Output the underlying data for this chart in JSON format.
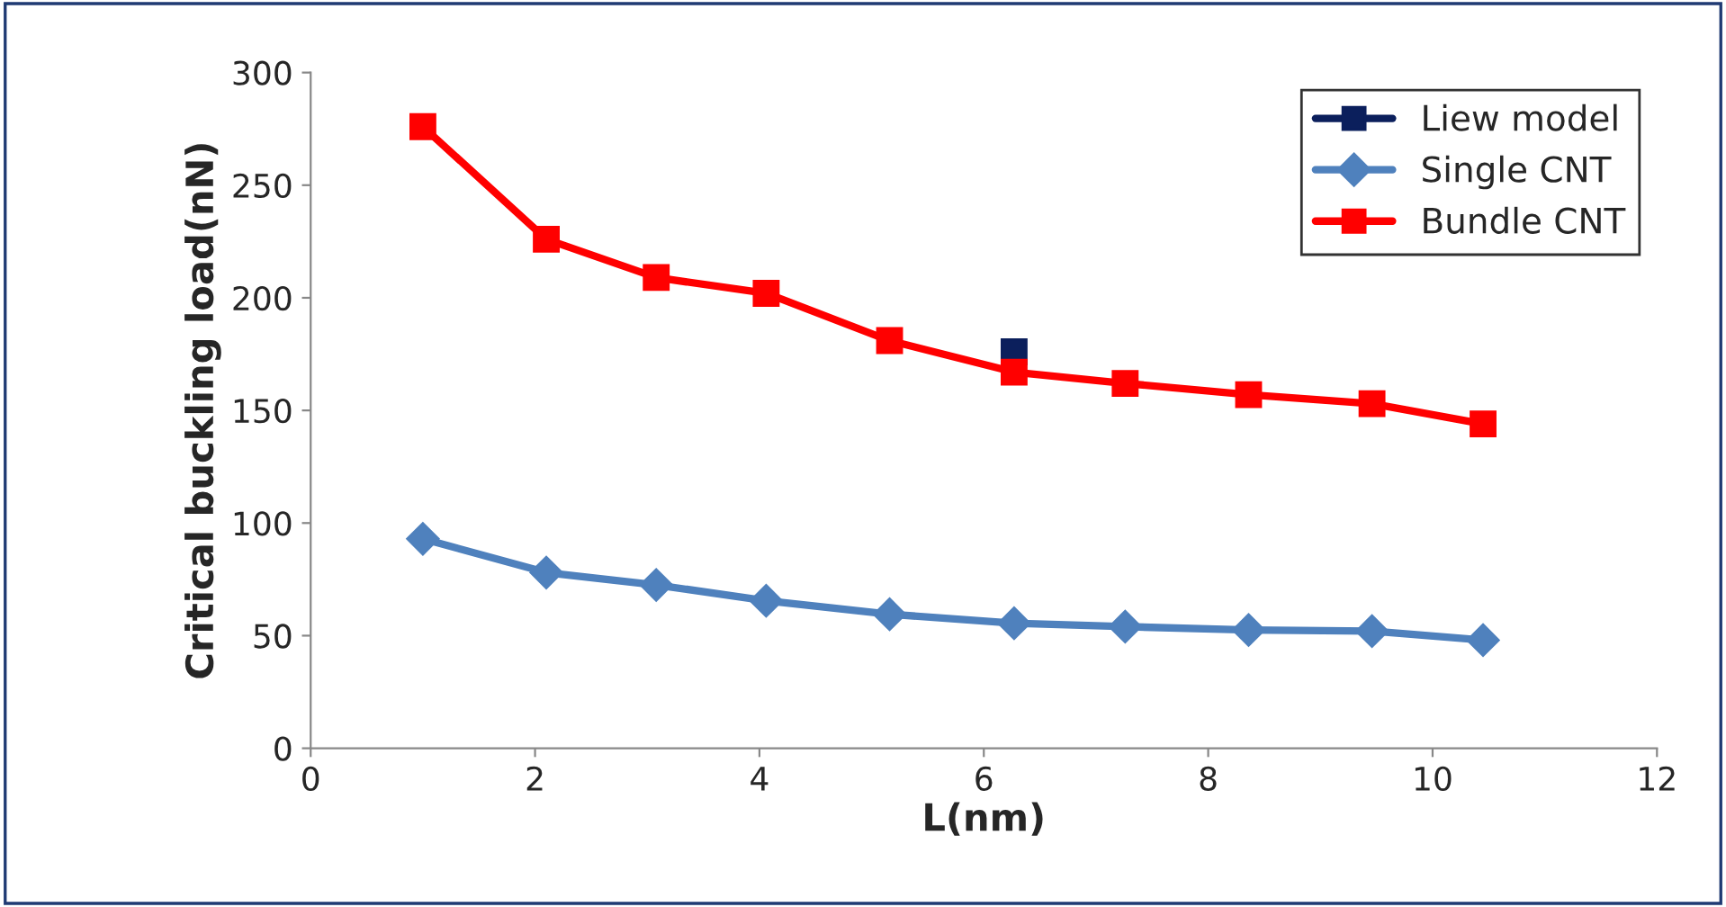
{
  "chart_data": {
    "type": "line",
    "xlabel": "L(nm)",
    "ylabel": "Critical buckling load(nN)",
    "xlim": [
      0,
      12
    ],
    "xticks": [
      0,
      2,
      4,
      6,
      8,
      10,
      12
    ],
    "ylim": [
      0,
      300
    ],
    "yticks": [
      0,
      50,
      100,
      150,
      200,
      250,
      300
    ],
    "grid": false,
    "legend": "top right",
    "series": [
      {
        "name": "Liew model",
        "color": "#0b1f5c",
        "marker": "square",
        "x": [
          6.27
        ],
        "values": [
          176
        ]
      },
      {
        "name": "Single CNT",
        "color": "#4f81bd",
        "marker": "diamond",
        "x": [
          1,
          2.1,
          3.08,
          4.06,
          5.16,
          6.27,
          7.26,
          8.36,
          9.46,
          10.45
        ],
        "values": [
          93,
          78,
          72.5,
          65.5,
          59.5,
          55.5,
          54,
          52.5,
          52,
          48
        ]
      },
      {
        "name": "Bundle CNT",
        "color": "#ff0000",
        "marker": "square",
        "x": [
          1,
          2.1,
          3.08,
          4.06,
          5.16,
          6.27,
          7.26,
          8.36,
          9.46,
          10.45
        ],
        "values": [
          276,
          226,
          209,
          202,
          181,
          167,
          162,
          157,
          153,
          144
        ]
      }
    ]
  }
}
